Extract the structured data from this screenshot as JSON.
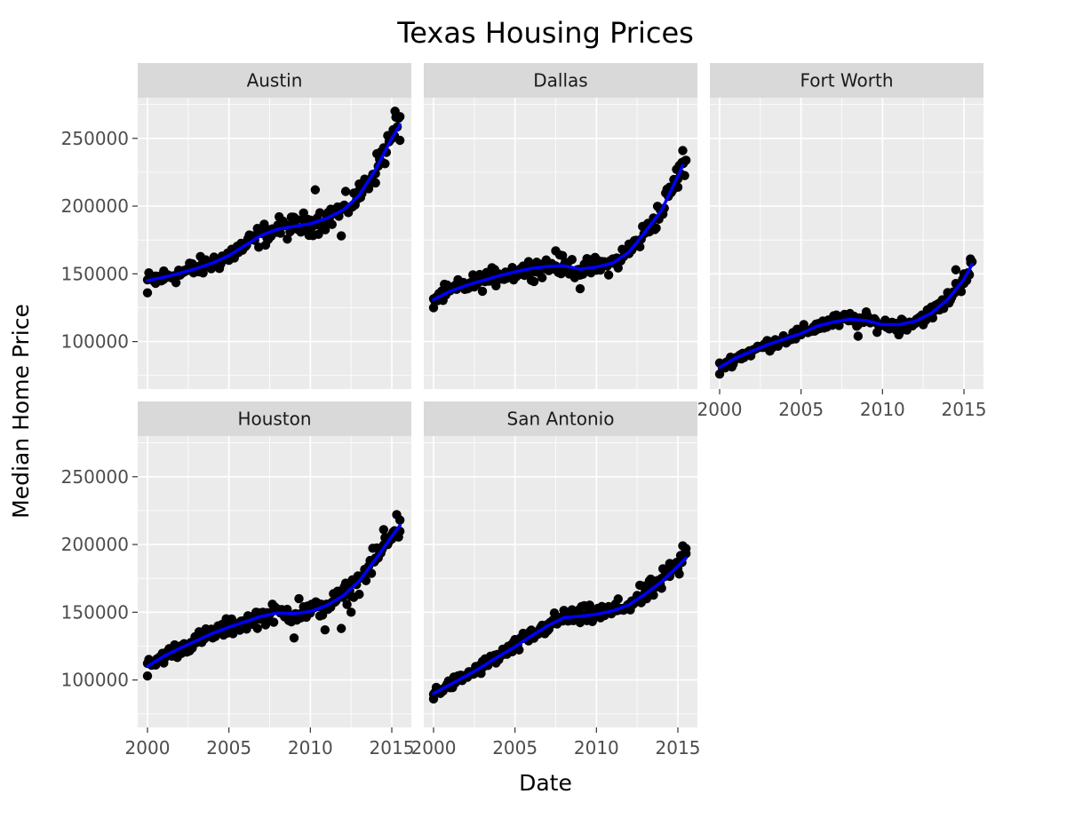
{
  "chart_data": {
    "type": "scatter",
    "title": "Texas Housing Prices",
    "xlabel": "Date",
    "ylabel": "Median Home Price",
    "facet_layout": "wrap 3 columns",
    "x_ticks": [
      2000,
      2005,
      2010,
      2015
    ],
    "y_ticks": [
      100000,
      150000,
      200000,
      250000
    ],
    "xlim": [
      1999.4,
      2016.2
    ],
    "ylim": [
      65000,
      280000
    ],
    "grid": true,
    "point_color": "#000000",
    "smooth_color": "#0000ff",
    "panel_background": "#ebebeb",
    "strip_background": "#d9d9d9",
    "panels": [
      {
        "city": "Austin",
        "smooth": [
          [
            2000,
            145000
          ],
          [
            2001,
            147500
          ],
          [
            2002,
            150500
          ],
          [
            2003,
            154000
          ],
          [
            2004,
            158000
          ],
          [
            2005,
            163500
          ],
          [
            2006,
            171000
          ],
          [
            2007,
            178500
          ],
          [
            2008,
            183000
          ],
          [
            2009,
            185000
          ],
          [
            2010,
            187000
          ],
          [
            2011,
            191000
          ],
          [
            2012,
            197000
          ],
          [
            2013,
            208000
          ],
          [
            2014,
            227000
          ],
          [
            2015,
            250000
          ],
          [
            2015.5,
            260000
          ]
        ],
        "anchors": [
          [
            2000,
            136000
          ],
          [
            2000.5,
            143000
          ],
          [
            2001,
            146000
          ],
          [
            2002,
            149000
          ],
          [
            2003,
            152000
          ],
          [
            2004,
            156000
          ],
          [
            2005,
            160000
          ],
          [
            2006,
            170000
          ],
          [
            2007,
            183000
          ],
          [
            2008,
            186000
          ],
          [
            2009,
            188000
          ],
          [
            2010,
            184000
          ],
          [
            2010.3,
            212000
          ],
          [
            2011,
            189000
          ],
          [
            2011.9,
            178000
          ],
          [
            2012,
            199000
          ],
          [
            2013,
            206000
          ],
          [
            2014,
            224000
          ],
          [
            2014.5,
            243000
          ],
          [
            2015,
            250000
          ],
          [
            2015.2,
            270000
          ],
          [
            2015.5,
            266000
          ]
        ]
      },
      {
        "city": "Dallas",
        "smooth": [
          [
            2000,
            131000
          ],
          [
            2001,
            137000
          ],
          [
            2002,
            141500
          ],
          [
            2003,
            145000
          ],
          [
            2004,
            148500
          ],
          [
            2005,
            151500
          ],
          [
            2006,
            154000
          ],
          [
            2007,
            155500
          ],
          [
            2008,
            156000
          ],
          [
            2009,
            153500
          ],
          [
            2010,
            155000
          ],
          [
            2011,
            158000
          ],
          [
            2012,
            166000
          ],
          [
            2013,
            181000
          ],
          [
            2014,
            197000
          ],
          [
            2015,
            222000
          ],
          [
            2015.3,
            230000
          ]
        ],
        "anchors": [
          [
            2000,
            125000
          ],
          [
            2000.5,
            132000
          ],
          [
            2001,
            138000
          ],
          [
            2002,
            142000
          ],
          [
            2003,
            146000
          ],
          [
            2004,
            150000
          ],
          [
            2005,
            152000
          ],
          [
            2006,
            155000
          ],
          [
            2007,
            157000
          ],
          [
            2007.5,
            167000
          ],
          [
            2008,
            156000
          ],
          [
            2009,
            152000
          ],
          [
            2009,
            139000
          ],
          [
            2010,
            158000
          ],
          [
            2011,
            161000
          ],
          [
            2012,
            172000
          ],
          [
            2013,
            182000
          ],
          [
            2014,
            196000
          ],
          [
            2014.5,
            214000
          ],
          [
            2015,
            220000
          ],
          [
            2015.3,
            241000
          ],
          [
            2015.4,
            233000
          ]
        ]
      },
      {
        "city": "Fort Worth",
        "smooth": [
          [
            2000,
            81000
          ],
          [
            2001,
            88000
          ],
          [
            2002,
            93000
          ],
          [
            2003,
            98000
          ],
          [
            2004,
            102000
          ],
          [
            2005,
            106000
          ],
          [
            2006,
            111500
          ],
          [
            2007,
            114500
          ],
          [
            2008,
            116500
          ],
          [
            2009,
            115500
          ],
          [
            2010,
            112500
          ],
          [
            2011,
            112500
          ],
          [
            2012,
            115000
          ],
          [
            2013,
            121000
          ],
          [
            2014,
            131000
          ],
          [
            2015,
            146000
          ],
          [
            2015.5,
            157000
          ]
        ],
        "anchors": [
          [
            2000,
            76000
          ],
          [
            2000.5,
            84000
          ],
          [
            2001,
            87000
          ],
          [
            2002,
            93000
          ],
          [
            2003,
            97000
          ],
          [
            2004,
            101000
          ],
          [
            2005,
            105000
          ],
          [
            2006,
            113000
          ],
          [
            2007,
            119000
          ],
          [
            2008,
            116000
          ],
          [
            2008.5,
            104000
          ],
          [
            2009,
            118000
          ],
          [
            2010,
            113000
          ],
          [
            2011,
            105000
          ],
          [
            2012,
            114000
          ],
          [
            2013,
            120000
          ],
          [
            2014,
            132000
          ],
          [
            2014.5,
            153000
          ],
          [
            2015,
            150000
          ],
          [
            2015.4,
            161000
          ]
        ]
      },
      {
        "city": "Houston",
        "smooth": [
          [
            2000,
            110000
          ],
          [
            2001,
            117500
          ],
          [
            2002,
            123500
          ],
          [
            2003,
            129000
          ],
          [
            2004,
            134500
          ],
          [
            2005,
            139000
          ],
          [
            2006,
            143000
          ],
          [
            2007,
            147000
          ],
          [
            2008,
            149500
          ],
          [
            2009,
            149000
          ],
          [
            2010,
            150500
          ],
          [
            2011,
            155000
          ],
          [
            2012,
            162000
          ],
          [
            2013,
            173000
          ],
          [
            2014,
            189000
          ],
          [
            2015,
            206000
          ],
          [
            2015.5,
            214000
          ]
        ],
        "anchors": [
          [
            2000,
            103000
          ],
          [
            2000.5,
            111000
          ],
          [
            2001,
            116000
          ],
          [
            2002,
            122000
          ],
          [
            2003,
            128000
          ],
          [
            2004,
            133000
          ],
          [
            2005,
            138000
          ],
          [
            2006,
            144000
          ],
          [
            2007,
            148000
          ],
          [
            2008,
            152000
          ],
          [
            2009,
            131000
          ],
          [
            2009.3,
            160000
          ],
          [
            2010,
            152000
          ],
          [
            2010.9,
            137000
          ],
          [
            2011,
            156000
          ],
          [
            2011.9,
            138000
          ],
          [
            2012,
            163000
          ],
          [
            2012.5,
            150000
          ],
          [
            2013,
            175000
          ],
          [
            2014,
            190000
          ],
          [
            2014.5,
            211000
          ],
          [
            2015,
            204000
          ],
          [
            2015.3,
            222000
          ],
          [
            2015.5,
            218000
          ]
        ]
      },
      {
        "city": "San Antonio",
        "smooth": [
          [
            2000,
            90000
          ],
          [
            2001,
            96500
          ],
          [
            2002,
            103000
          ],
          [
            2003,
            110000
          ],
          [
            2004,
            117500
          ],
          [
            2005,
            124500
          ],
          [
            2006,
            132500
          ],
          [
            2007,
            140000
          ],
          [
            2008,
            146000
          ],
          [
            2009,
            147000
          ],
          [
            2010,
            148500
          ],
          [
            2011,
            151000
          ],
          [
            2012,
            155500
          ],
          [
            2013,
            163500
          ],
          [
            2014,
            172500
          ],
          [
            2015,
            184000
          ],
          [
            2015.5,
            190000
          ]
        ],
        "anchors": [
          [
            2000,
            86000
          ],
          [
            2000.5,
            93000
          ],
          [
            2001,
            96000
          ],
          [
            2002,
            103000
          ],
          [
            2003,
            109000
          ],
          [
            2004,
            118000
          ],
          [
            2005,
            124000
          ],
          [
            2006,
            133000
          ],
          [
            2007,
            141000
          ],
          [
            2008,
            147000
          ],
          [
            2009,
            145000
          ],
          [
            2010,
            148000
          ],
          [
            2011,
            152000
          ],
          [
            2012,
            156000
          ],
          [
            2013,
            164000
          ],
          [
            2014,
            175000
          ],
          [
            2014.5,
            186000
          ],
          [
            2015,
            182000
          ],
          [
            2015.3,
            199000
          ],
          [
            2015.5,
            197000
          ]
        ]
      }
    ]
  }
}
